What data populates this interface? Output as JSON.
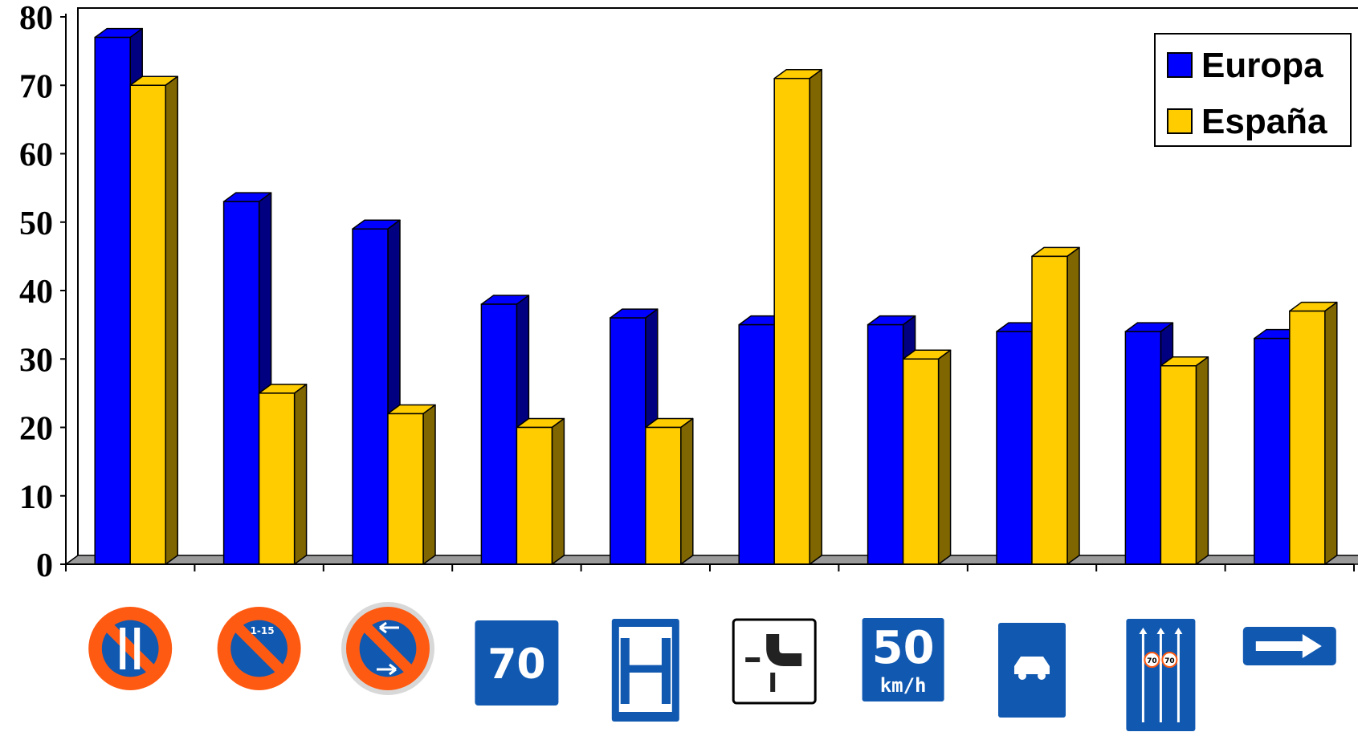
{
  "chart_data": {
    "type": "bar",
    "categories": [
      "no-parking-alternate-sign",
      "no-parking-1-15-sign",
      "no-parking-alternate-arrows-sign",
      "speed-70-sign",
      "hospital-sign",
      "road-junction-sign",
      "speed-50-kmh-sign",
      "car-road-sign",
      "lane-speed-70-sign",
      "direction-arrow-sign"
    ],
    "series": [
      {
        "name": "Europa",
        "color": "#0000ff",
        "values": [
          77,
          53,
          49,
          38,
          36,
          35,
          35,
          34,
          34,
          33
        ]
      },
      {
        "name": "España",
        "color": "#ffcc00",
        "values": [
          70,
          25,
          22,
          20,
          20,
          71,
          30,
          45,
          29,
          37
        ]
      }
    ],
    "ylim": [
      0,
      80
    ],
    "yticks": [
      "0",
      "10",
      "20",
      "30",
      "40",
      "50",
      "60",
      "70",
      "80"
    ],
    "legend_position": "top-right",
    "grid": false,
    "three_d": true
  },
  "sign_labels": {
    "no_parking_small": "1-15",
    "speed_70": "70",
    "hospital": "H",
    "speed_50": "50",
    "speed_50_unit": "km/h",
    "lane_speed": "70"
  }
}
